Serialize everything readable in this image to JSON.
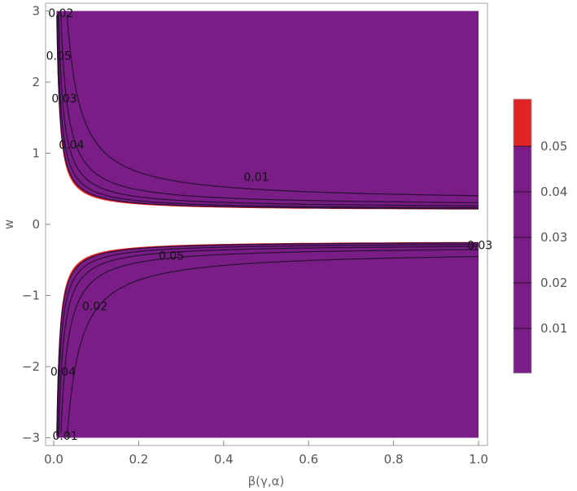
{
  "chart_data": {
    "type": "contour",
    "xlabel": "β(γ,α)",
    "ylabel": "w",
    "xlim": [
      0,
      1.0
    ],
    "ylim": [
      -3,
      3
    ],
    "x_ticks": [
      "0.0",
      "0.2",
      "0.4",
      "0.6",
      "0.8",
      "1.0"
    ],
    "y_ticks": [
      "−3",
      "−2",
      "−1",
      "0",
      "1",
      "2",
      "3"
    ],
    "fill_color": "#7a1d87",
    "exceed_color": "#e02423",
    "line_color": "#2a0f34",
    "contour_levels": [
      0.01,
      0.02,
      0.03,
      0.04,
      0.05
    ],
    "contour_labels": [
      {
        "text": "0.02",
        "x": 0.01,
        "y": 2.97
      },
      {
        "text": "0.05",
        "x": 0.005,
        "y": 2.37
      },
      {
        "text": "0.03",
        "x": 0.018,
        "y": 1.77
      },
      {
        "text": "0.04",
        "x": 0.035,
        "y": 1.12
      },
      {
        "text": "0.01",
        "x": 0.47,
        "y": 0.67
      },
      {
        "text": "0.05",
        "x": 0.27,
        "y": -0.44
      },
      {
        "text": "0.02",
        "x": 0.09,
        "y": -1.15
      },
      {
        "text": "0.04",
        "x": 0.015,
        "y": -2.07
      },
      {
        "text": "0.01",
        "x": 0.02,
        "y": -2.97
      },
      {
        "text": "0.03",
        "x": 1.0,
        "y": -0.29
      }
    ],
    "legend": {
      "type": "colorbar",
      "placement": "right",
      "ticks": [
        "0.01",
        "0.02",
        "0.03",
        "0.04",
        "0.05"
      ]
    }
  }
}
